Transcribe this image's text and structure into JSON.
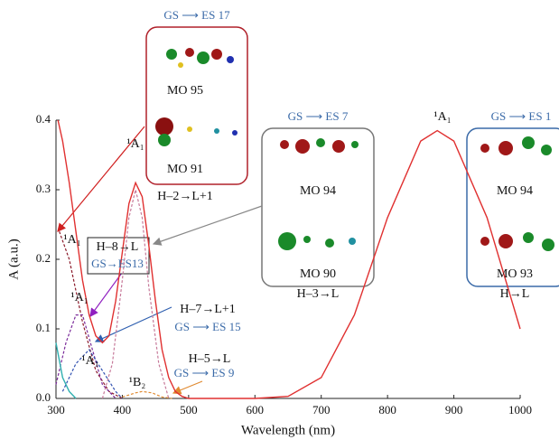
{
  "chart_data": {
    "type": "line",
    "xlabel": "Wavelength (nm)",
    "ylabel": "A (a.u.)",
    "xlim": [
      300,
      1000
    ],
    "ylim": [
      0,
      0.4
    ],
    "xticks": [
      300,
      400,
      500,
      600,
      700,
      800,
      900,
      1000
    ],
    "yticks": [
      {
        "value": 0,
        "label": "0.0"
      },
      0.1,
      0.2,
      0.3,
      0.4
    ],
    "series": [
      {
        "color": "#e03030",
        "dashed": false,
        "x": [
          303,
          310,
          320,
          330,
          340,
          350,
          360,
          370,
          380,
          390,
          400,
          410,
          420,
          430,
          440,
          450,
          460,
          470,
          480,
          490,
          500,
          550,
          600,
          650,
          700,
          750,
          800,
          850,
          875,
          900,
          950,
          1000
        ],
        "values": [
          0.4,
          0.37,
          0.31,
          0.24,
          0.17,
          0.12,
          0.09,
          0.08,
          0.09,
          0.14,
          0.21,
          0.28,
          0.31,
          0.29,
          0.22,
          0.14,
          0.07,
          0.03,
          0.01,
          0.003,
          0,
          0,
          0,
          0.003,
          0.03,
          0.12,
          0.26,
          0.37,
          0.385,
          0.37,
          0.26,
          0.1
        ]
      },
      {
        "color": "#8b1a2a",
        "dashed": true,
        "x": [
          305,
          320,
          340,
          360,
          380,
          400
        ],
        "values": [
          0.24,
          0.2,
          0.11,
          0.04,
          0.01,
          0
        ]
      },
      {
        "color": "#c77a9a",
        "dashed": true,
        "x": [
          370,
          385,
          400,
          410,
          420,
          430,
          440,
          455,
          470
        ],
        "values": [
          0,
          0.05,
          0.17,
          0.26,
          0.3,
          0.26,
          0.16,
          0.05,
          0
        ]
      },
      {
        "color": "#7a2a9a",
        "dashed": true,
        "x": [
          300,
          315,
          330,
          340,
          355,
          370,
          390
        ],
        "values": [
          0.02,
          0.08,
          0.12,
          0.12,
          0.07,
          0.02,
          0
        ]
      },
      {
        "color": "#3050b0",
        "dashed": true,
        "x": [
          310,
          330,
          350,
          370,
          390,
          400
        ],
        "values": [
          0.01,
          0.05,
          0.07,
          0.04,
          0.01,
          0
        ]
      },
      {
        "color": "#e08a30",
        "dashed": true,
        "x": [
          400,
          420,
          430,
          445,
          460,
          475
        ],
        "values": [
          0.002,
          0.008,
          0.01,
          0.008,
          0.002,
          0
        ]
      },
      {
        "color": "#30b0b0",
        "dashed": false,
        "x": [
          300,
          310,
          320,
          330
        ],
        "values": [
          0.08,
          0.03,
          0.01,
          0
        ]
      }
    ],
    "annotations": [
      {
        "text": "GS ⟶ ES 17",
        "color": "#3a6aa8"
      },
      {
        "text": "MO 95",
        "color": "#111111"
      },
      {
        "text": "MO 91",
        "color": "#111111"
      },
      {
        "text": "H–2→L+1",
        "color": "#111111"
      },
      {
        "text": "¹A₁",
        "color": "#111111"
      },
      {
        "text": "GS ⟶ ES 7",
        "color": "#3a6aa8"
      },
      {
        "text": "MO 94",
        "color": "#111111"
      },
      {
        "text": "MO 90",
        "color": "#111111"
      },
      {
        "text": "H–3→L",
        "color": "#111111"
      },
      {
        "text": "¹A₁",
        "color": "#111111"
      },
      {
        "text": "GS ⟶ ES 1",
        "color": "#3a6aa8"
      },
      {
        "text": "MO 94",
        "color": "#111111"
      },
      {
        "text": "MO 93",
        "color": "#111111"
      },
      {
        "text": "H→L",
        "color": "#111111"
      },
      {
        "text": "¹A₁",
        "color": "#111111"
      },
      {
        "text": "H–8→L",
        "color": "#111111"
      },
      {
        "text": "GS→ES13",
        "color": "#3a6aa8"
      },
      {
        "text": "¹A₁",
        "color": "#111111"
      },
      {
        "text": "H–7→L+1",
        "color": "#111111"
      },
      {
        "text": "GS ⟶ ES 15",
        "color": "#3a6aa8"
      },
      {
        "text": "¹A₁",
        "color": "#111111"
      },
      {
        "text": "H–5→L",
        "color": "#111111"
      },
      {
        "text": "GS ⟶ ES 9",
        "color": "#3a6aa8"
      },
      {
        "text": "¹B₂",
        "color": "#111111"
      }
    ]
  }
}
